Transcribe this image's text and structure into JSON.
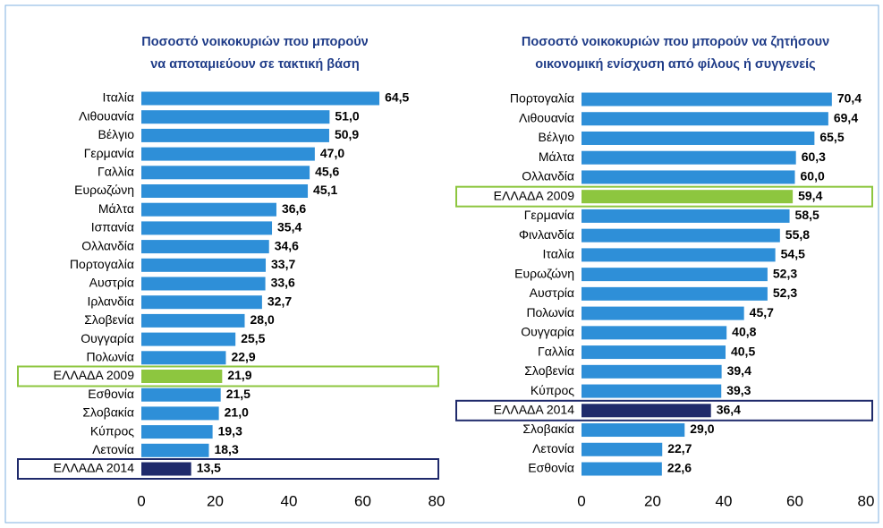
{
  "chart_data": [
    {
      "type": "bar",
      "orientation": "horizontal",
      "title": [
        "Ποσοστό νοικοκυριών που μπορούν",
        "να αποταμιεύουν σε τακτική βάση"
      ],
      "categories": [
        "Ιταλία",
        "Λιθουανία",
        "Βέλγιο",
        "Γερμανία",
        "Γαλλία",
        "Ευρωζώνη",
        "Μάλτα",
        "Ισπανία",
        "Ολλανδία",
        "Πορτογαλία",
        "Αυστρία",
        "Ιρλανδία",
        "Σλοβενία",
        "Ουγγαρία",
        "Πολωνία",
        "ΕΛΛΑΔΑ 2009",
        "Εσθονία",
        "Σλοβακία",
        "Κύπρος",
        "Λετονία",
        "ΕΛΛΑΔΑ 2014"
      ],
      "values": [
        64.5,
        51.0,
        50.9,
        47.0,
        45.6,
        45.1,
        36.6,
        35.4,
        34.6,
        33.7,
        33.6,
        32.7,
        28.0,
        25.5,
        22.9,
        21.9,
        21.5,
        21.0,
        19.3,
        18.3,
        13.5
      ],
      "value_labels": [
        "64,5",
        "51,0",
        "50,9",
        "47,0",
        "45,6",
        "45,1",
        "36,6",
        "35,4",
        "34,6",
        "33,7",
        "33,6",
        "32,7",
        "28,0",
        "25,5",
        "22,9",
        "21,9",
        "21,5",
        "21,0",
        "19,3",
        "18,3",
        "13,5"
      ],
      "colors": [
        "#2e8fd8",
        "#2e8fd8",
        "#2e8fd8",
        "#2e8fd8",
        "#2e8fd8",
        "#2e8fd8",
        "#2e8fd8",
        "#2e8fd8",
        "#2e8fd8",
        "#2e8fd8",
        "#2e8fd8",
        "#2e8fd8",
        "#2e8fd8",
        "#2e8fd8",
        "#2e8fd8",
        "#8dc63f",
        "#2e8fd8",
        "#2e8fd8",
        "#2e8fd8",
        "#2e8fd8",
        "#1f2a6b"
      ],
      "color": "#2e8fd8",
      "xlim": [
        0,
        80
      ],
      "xticks": [
        0,
        20,
        40,
        60,
        80
      ]
    },
    {
      "type": "bar",
      "orientation": "horizontal",
      "title": [
        "Ποσοστό νοικοκυριών που μπορούν να ζητήσουν",
        "οικονομική ενίσχυση από φίλους ή συγγενείς"
      ],
      "categories": [
        "Πορτογαλία",
        "Λιθουανία",
        "Βέλγιο",
        "Μάλτα",
        "Ολλανδία",
        "ΕΛΛΑΔΑ 2009",
        "Γερμανία",
        "Φινλανδία",
        "Ιταλία",
        "Ευρωζώνη",
        "Αυστρία",
        "Πολωνία",
        "Ουγγαρία",
        "Γαλλία",
        "Σλοβενία",
        "Κύπρος",
        "ΕΛΛΑΔΑ 2014",
        "Σλοβακία",
        "Λετονία",
        "Εσθονία"
      ],
      "values": [
        70.4,
        69.4,
        65.5,
        60.3,
        60.0,
        59.4,
        58.5,
        55.8,
        54.5,
        52.3,
        52.3,
        45.7,
        40.8,
        40.5,
        39.4,
        39.3,
        36.4,
        29.0,
        22.7,
        22.6
      ],
      "value_labels": [
        "70,4",
        "69,4",
        "65,5",
        "60,3",
        "60,0",
        "59,4",
        "58,5",
        "55,8",
        "54,5",
        "52,3",
        "52,3",
        "45,7",
        "40,8",
        "40,5",
        "39,4",
        "39,3",
        "36,4",
        "29,0",
        "22,7",
        "22,6"
      ],
      "colors": [
        "#2e8fd8",
        "#2e8fd8",
        "#2e8fd8",
        "#2e8fd8",
        "#2e8fd8",
        "#8dc63f",
        "#2e8fd8",
        "#2e8fd8",
        "#2e8fd8",
        "#2e8fd8",
        "#2e8fd8",
        "#2e8fd8",
        "#2e8fd8",
        "#2e8fd8",
        "#2e8fd8",
        "#2e8fd8",
        "#1f2a6b",
        "#2e8fd8",
        "#2e8fd8",
        "#2e8fd8"
      ],
      "color": "#2e8fd8",
      "xlim": [
        0,
        80
      ],
      "xticks": [
        0,
        20,
        40,
        60,
        80
      ]
    }
  ]
}
